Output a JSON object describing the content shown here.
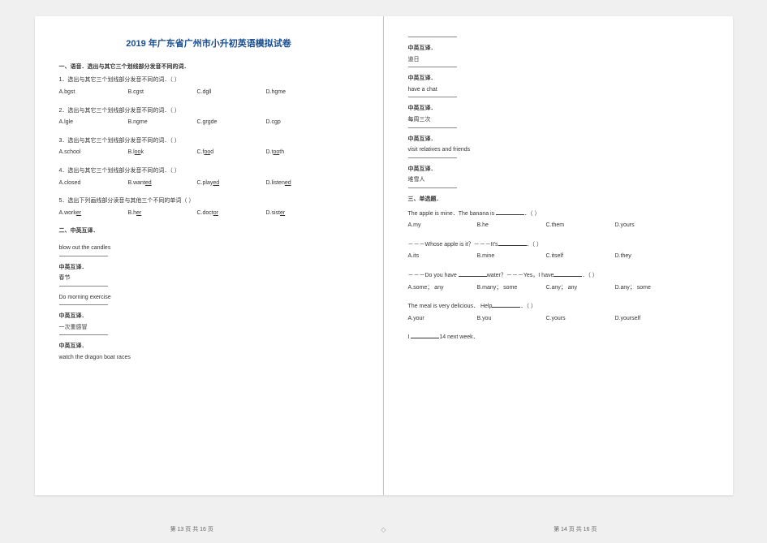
{
  "title": "2019 年广东省广州市小升初英语模拟试卷",
  "section1_header": "一、语音．选出与其它三个划线部分发音不同的词．",
  "q1": {
    "text": "1．选出与其它三个划线部分发音不同的词．（ ）",
    "a": "A.bgst",
    "b": "B.cgst",
    "c": "C.dgll",
    "d": "D.hgme"
  },
  "q2": {
    "text": "2．选出与其它三个划线部分发音不同的词．（ ）",
    "a": "A.lgle",
    "b": "B.ngme",
    "c": "C.grgde",
    "d": "D.cgp"
  },
  "q3": {
    "text": "3．选出与其它三个划线部分发音不同的词．（ ）",
    "a": "A.school",
    "b_pre": "B.l",
    "b_u": "oo",
    "b_post": "k",
    "c_pre": "C.f",
    "c_u": "oo",
    "c_post": "d",
    "d_pre": "D.t",
    "d_u": "oo",
    "d_post": "th"
  },
  "q4": {
    "text": "4．选出与其它三个划线部分发音不同的词．（ ）",
    "a": "A.closed",
    "b_pre": "B.want",
    "b_u": "ed",
    "c_pre": "C.play",
    "c_u": "ed",
    "d_pre": "D.listen",
    "d_u": "ed"
  },
  "q5": {
    "text": "5．选出下列画线部分读音与其他三个不同的单词（ ）",
    "a_pre": "A.work",
    "a_u": "er",
    "b_pre": "B.h",
    "b_u": "er",
    "c_pre": "C.doct",
    "c_u": "or",
    "d_pre": "D.sist",
    "d_u": "er"
  },
  "section2_header": "二、中英互译．",
  "t1": {
    "label": "",
    "text": "blow out the candles"
  },
  "t2": {
    "label": "中英互译．",
    "text": "春节"
  },
  "t3": {
    "label": "",
    "text": "Do morning exercise"
  },
  "t4": {
    "label": "中英互译．",
    "text": "一次重感冒"
  },
  "t5": {
    "label": "中英互译．",
    "text": "watch the dragon boat races"
  },
  "t6": {
    "label": "中英互译．",
    "text": "道日"
  },
  "t7": {
    "label": "中英互译．",
    "text": "have a chat"
  },
  "t8": {
    "label": "中英互译．",
    "text": "每周三次"
  },
  "t9": {
    "label": "中英互译．",
    "text": "visit relatives and friends"
  },
  "t10": {
    "label": "中英互译．",
    "text": "堆雪人"
  },
  "section3_header": "三、单选题．",
  "mc1": {
    "text_pre": "The apple is mine．The banana is ",
    "text_post": "．（ ）",
    "a": "A.my",
    "b": "B.he",
    "c": "C.them",
    "d": "D.yours"
  },
  "mc2": {
    "text_pre": "－－－Whose apple is it？－－－It's",
    "text_post": "．（ ）",
    "a": "A.its",
    "b": "B.mine",
    "c": "C.itself",
    "d": "D.they"
  },
  "mc3": {
    "text_pre": "－－－Do you have ",
    "text_mid": "water？－－－Yes，I have",
    "text_post": "．（ ）",
    "a": "A.some； any",
    "b": "B.many； some",
    "c": "C.any； any",
    "d": "D.any； some"
  },
  "mc4": {
    "text_pre": "The meal is very delicious． Help",
    "text_post": "．（ ）",
    "a": "A.your",
    "b": "B.you",
    "c": "C.yours",
    "d": "D.yourself"
  },
  "mc5": {
    "text_pre": "I ",
    "text_post": "14 next week．"
  },
  "footer_left": "第 13 页 共 16 页",
  "footer_right": "第 14 页 共 16 页",
  "footer_icon": "◇"
}
